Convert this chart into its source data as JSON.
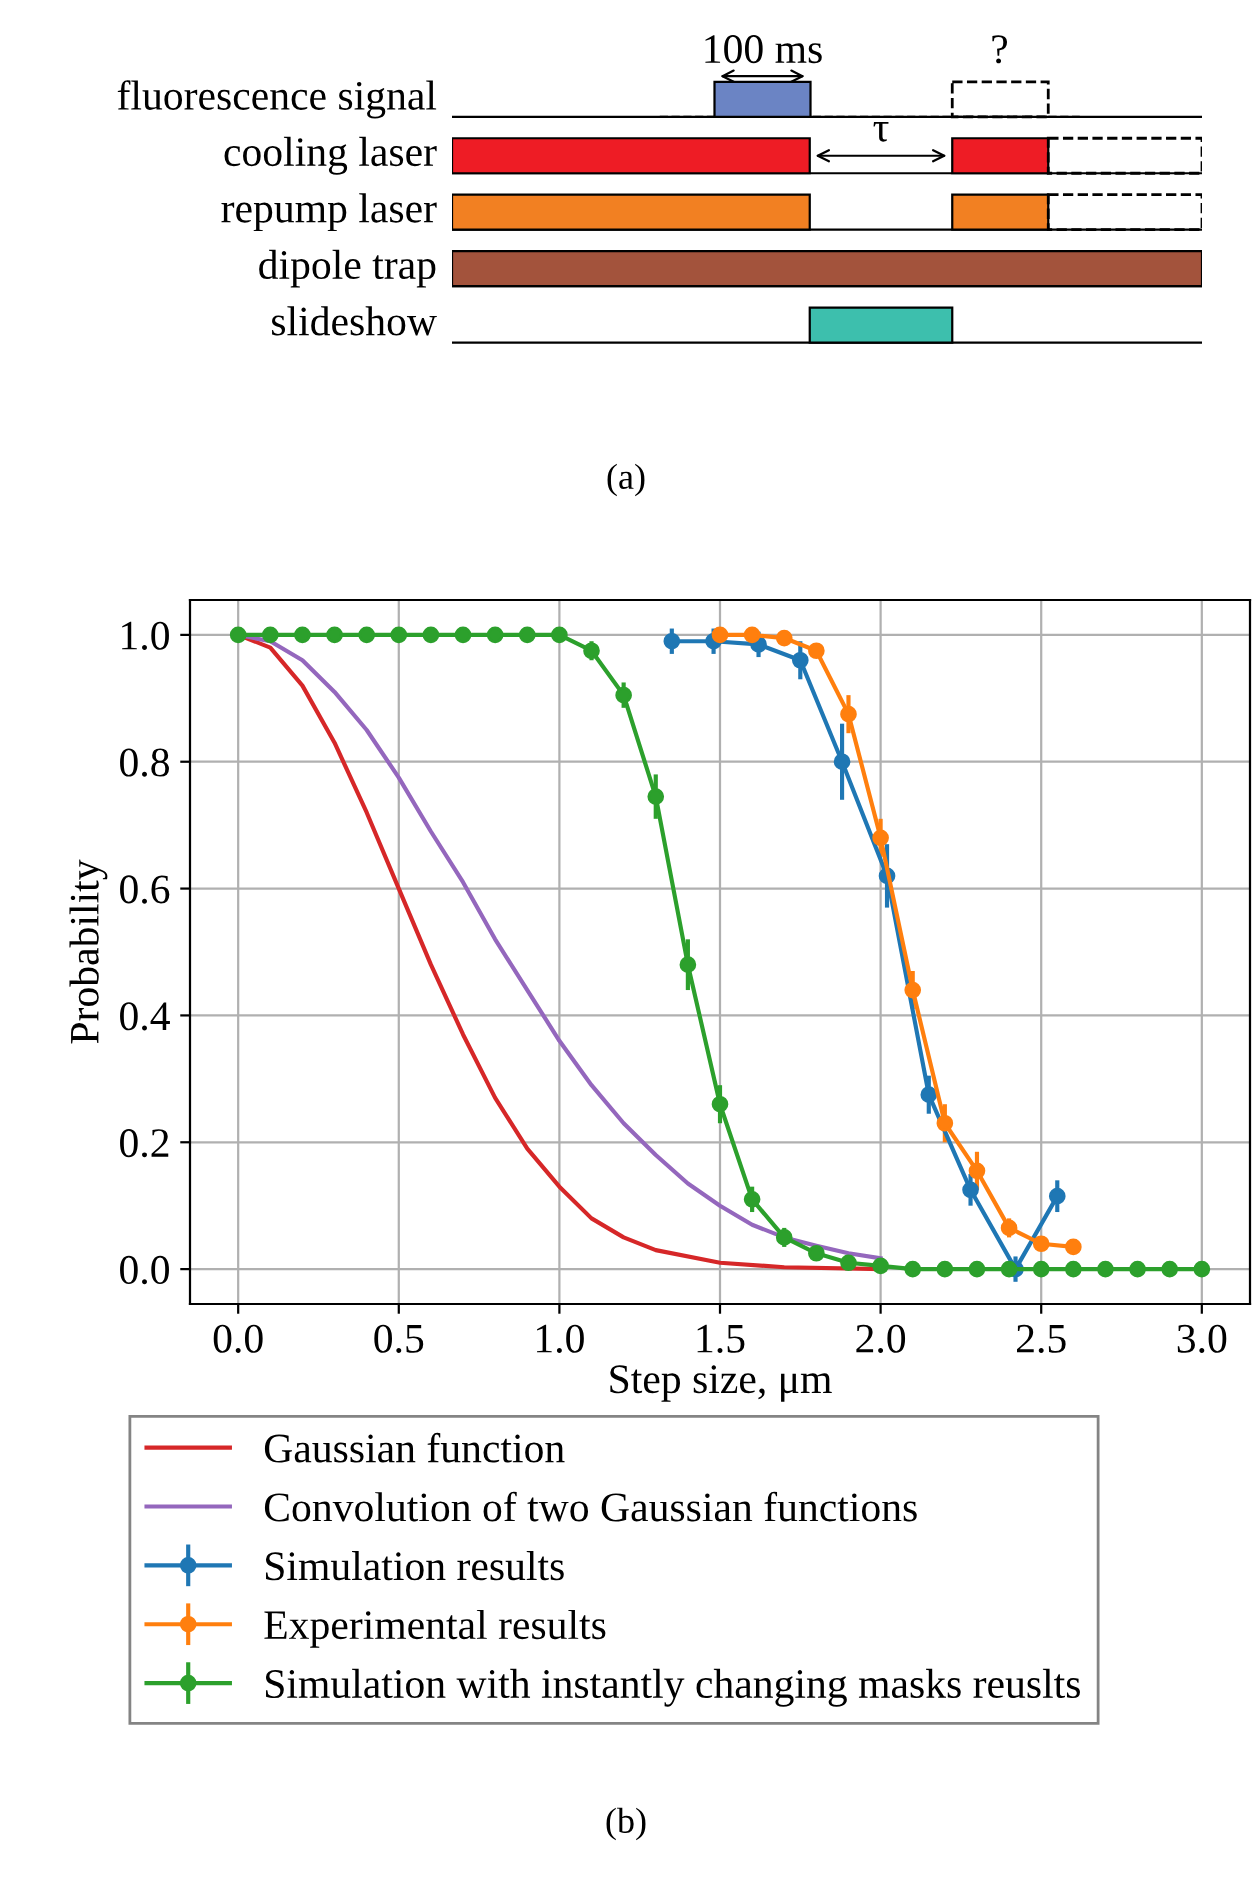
{
  "chart_data": [
    {
      "type": "other",
      "annotations": [
        "fluorescence signal",
        "cooling laser",
        "repump laser",
        "dipole trap",
        "slideshow",
        "100 ms",
        "?",
        "τ",
        "(a)"
      ]
    },
    {
      "type": "line",
      "xlabel": "Step size, μm",
      "ylabel": "Probability",
      "xlim": [
        -0.15,
        3.15
      ],
      "ylim": [
        -0.055,
        1.055
      ],
      "xticks": [
        {
          "value": 0,
          "label": "0.0"
        },
        {
          "value": 0.5,
          "label": "0.5"
        },
        {
          "value": 1,
          "label": "1.0"
        },
        {
          "value": 1.5,
          "label": "1.5"
        },
        {
          "value": 2,
          "label": "2.0"
        },
        {
          "value": 2.5,
          "label": "2.5"
        },
        {
          "value": 3,
          "label": "3.0"
        }
      ],
      "yticks": [
        {
          "value": 0,
          "label": "0.0"
        },
        {
          "value": 0.2,
          "label": "0.2"
        },
        {
          "value": 0.4,
          "label": "0.4"
        },
        {
          "value": 0.6,
          "label": "0.6"
        },
        {
          "value": 0.8,
          "label": "0.8"
        },
        {
          "value": 1,
          "label": "1.0"
        }
      ],
      "grid": true,
      "legend": "bottom",
      "annotations": [
        "(b)"
      ],
      "series": [
        {
          "name": "Gaussian function",
          "color": "#d62728",
          "marker": "none",
          "x": [
            0,
            0.1,
            0.2,
            0.3,
            0.4,
            0.5,
            0.6,
            0.7,
            0.8,
            0.9,
            1.0,
            1.1,
            1.2,
            1.3,
            1.5,
            1.7,
            2.0
          ],
          "values": [
            1,
            0.98,
            0.92,
            0.83,
            0.72,
            0.6,
            0.48,
            0.37,
            0.27,
            0.19,
            0.13,
            0.08,
            0.05,
            0.03,
            0.01,
            0.003,
            0.0
          ]
        },
        {
          "name": "Convolution of two Gaussian functions",
          "color": "#9467bd",
          "marker": "none",
          "x": [
            0,
            0.1,
            0.2,
            0.3,
            0.4,
            0.5,
            0.6,
            0.7,
            0.8,
            0.9,
            1.0,
            1.1,
            1.2,
            1.3,
            1.4,
            1.5,
            1.6,
            1.7,
            1.8,
            1.9,
            2.0
          ],
          "values": [
            1,
            0.99,
            0.96,
            0.91,
            0.85,
            0.775,
            0.69,
            0.61,
            0.52,
            0.44,
            0.36,
            0.29,
            0.23,
            0.18,
            0.135,
            0.1,
            0.07,
            0.05,
            0.037,
            0.025,
            0.017
          ]
        },
        {
          "name": "Simulation results",
          "color": "#1f77b4",
          "marker": "circle",
          "x": [
            1.35,
            1.48,
            1.62,
            1.75,
            1.88,
            2.02,
            2.15,
            2.28,
            2.42,
            2.55
          ],
          "values": [
            0.99,
            0.99,
            0.985,
            0.96,
            0.8,
            0.62,
            0.275,
            0.125,
            0.0,
            0.115
          ],
          "errors": [
            0.02,
            0.02,
            0.02,
            0.03,
            0.06,
            0.05,
            0.03,
            0.025,
            0.02,
            0.025
          ]
        },
        {
          "name": "Experimental results",
          "color": "#ff7f0e",
          "marker": "circle",
          "x": [
            1.5,
            1.6,
            1.7,
            1.8,
            1.9,
            2.0,
            2.1,
            2.2,
            2.3,
            2.4,
            2.5,
            2.6
          ],
          "values": [
            1.0,
            1.0,
            0.995,
            0.975,
            0.875,
            0.68,
            0.44,
            0.23,
            0.155,
            0.065,
            0.04,
            0.035
          ],
          "errors": [
            0.01,
            0.01,
            0.01,
            0.01,
            0.03,
            0.03,
            0.03,
            0.03,
            0.03,
            0.015,
            0.01,
            0.01
          ]
        },
        {
          "name": "Simulation with instantly changing masks reuslts",
          "color": "#2ca02c",
          "marker": "circle",
          "x": [
            0,
            0.1,
            0.2,
            0.3,
            0.4,
            0.5,
            0.6,
            0.7,
            0.8,
            0.9,
            1.0,
            1.1,
            1.2,
            1.3,
            1.4,
            1.5,
            1.6,
            1.7,
            1.8,
            1.9,
            2.0,
            2.1,
            2.2,
            2.3,
            2.4,
            2.5,
            2.6,
            2.7,
            2.8,
            2.9,
            3.0
          ],
          "values": [
            1,
            1,
            1,
            1,
            1,
            1,
            1,
            1,
            1,
            1,
            1,
            0.975,
            0.905,
            0.745,
            0.48,
            0.26,
            0.11,
            0.05,
            0.025,
            0.01,
            0.005,
            0,
            0,
            0,
            0,
            0,
            0,
            0,
            0,
            0,
            0
          ],
          "errors": [
            null,
            null,
            null,
            null,
            null,
            null,
            null,
            null,
            null,
            null,
            null,
            0.015,
            0.02,
            0.035,
            0.04,
            0.03,
            0.02,
            0.015,
            null,
            null,
            null,
            null,
            null,
            null,
            null,
            null,
            null,
            null,
            null,
            null,
            null
          ]
        }
      ]
    }
  ]
}
